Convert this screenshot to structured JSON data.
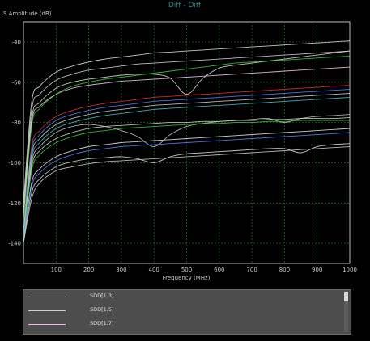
{
  "chart_data": {
    "type": "line",
    "title": "Diff - Diff",
    "xlabel": "Frequency (MHz)",
    "ylabel": "S Amplitude (dB)",
    "xlim": [
      0,
      1000
    ],
    "ylim": [
      -150,
      -30
    ],
    "xticks": [
      100,
      200,
      300,
      400,
      500,
      600,
      700,
      800,
      900,
      1000
    ],
    "yticks": [
      -40,
      -60,
      -80,
      -100,
      -120,
      -140
    ],
    "xtick_labels": [
      "100",
      "200",
      "300",
      "400",
      "500",
      "600",
      "700",
      "800",
      "900",
      "1000"
    ],
    "ytick_labels": [
      "-40",
      "-60",
      "-80",
      "-100",
      "-120",
      "-140"
    ],
    "grid": true,
    "x": [
      0,
      25,
      50,
      100,
      150,
      200,
      250,
      300,
      350,
      400,
      450,
      500,
      550,
      600,
      650,
      700,
      750,
      800,
      850,
      900,
      950,
      1000
    ],
    "series": [
      {
        "name": "SDD[1,3]",
        "color": "#dcdcdc",
        "values": [
          -120,
          -70,
          -62,
          -55,
          -52,
          -50,
          -48.5,
          -47.5,
          -46.5,
          -45.5,
          -45,
          -44.5,
          -44,
          -43.5,
          -43,
          -42.5,
          -42,
          -41.5,
          -41,
          -40.5,
          -40,
          -39.5
        ]
      },
      {
        "name": "SDD[1,5]",
        "color": "#d0d0d0",
        "values": [
          -125,
          -74,
          -66,
          -59,
          -56,
          -54,
          -53,
          -52,
          -51,
          -50.5,
          -50,
          -49.5,
          -49,
          -48.5,
          -48,
          -47.5,
          -47,
          -46.5,
          -46,
          -45.5,
          -45,
          -44.5
        ]
      },
      {
        "name": "SDD[1,7]",
        "color": "#e8c0e8",
        "values": [
          -128,
          -80,
          -72,
          -66,
          -63,
          -61.5,
          -60.5,
          -59.5,
          -59,
          -58.5,
          -58,
          -57.5,
          -57,
          -56.5,
          -56,
          -55.5,
          -55,
          -54.5,
          -54,
          -53.5,
          -53,
          -52.5
        ]
      },
      {
        "color": "#d8d8d8",
        "values": [
          -126,
          -78,
          -70,
          -63,
          -60,
          -58.5,
          -57.5,
          -56.5,
          -56,
          -56,
          -58,
          -66,
          -58,
          -53,
          -51.5,
          -50.5,
          -49.5,
          -48.5,
          -47.5,
          -46.5,
          -45.5,
          -44.5
        ]
      },
      {
        "color": "#38c838",
        "values": [
          -130,
          -82,
          -73,
          -66,
          -62,
          -60,
          -58.5,
          -57.5,
          -56.5,
          -55.5,
          -54.5,
          -53.5,
          -52.5,
          -51.5,
          -50.5,
          -50,
          -49.5,
          -49,
          -48.5,
          -48,
          -47.5,
          -47
        ]
      },
      {
        "color": "#e03030",
        "values": [
          -132,
          -92,
          -84,
          -77,
          -74,
          -72,
          -70.5,
          -69.5,
          -68.5,
          -67.5,
          -67,
          -66.5,
          -66,
          -65.5,
          -65,
          -64.5,
          -64,
          -63.5,
          -63,
          -62.5,
          -62,
          -61.5
        ]
      },
      {
        "color": "#5080ff",
        "values": [
          -133,
          -94,
          -86,
          -79,
          -76,
          -74,
          -72.5,
          -71.5,
          -70.5,
          -69.5,
          -69,
          -68.5,
          -68,
          -67.5,
          -67,
          -66.5,
          -66,
          -65.5,
          -65,
          -64.5,
          -64,
          -63.5
        ]
      },
      {
        "color": "#cccccc",
        "values": [
          -134,
          -96,
          -88,
          -81,
          -78,
          -76,
          -74.5,
          -73.5,
          -72.5,
          -71.5,
          -71,
          -70.5,
          -70,
          -69.5,
          -69,
          -68.5,
          -68,
          -67.5,
          -67,
          -66.5,
          -66,
          -65.5
        ]
      },
      {
        "color": "#40c0c0",
        "values": [
          -135,
          -98,
          -90,
          -83,
          -80,
          -78,
          -76.5,
          -75.5,
          -74.5,
          -73.5,
          -73,
          -72.5,
          -72,
          -71.5,
          -71,
          -70.5,
          -70,
          -69.5,
          -69,
          -68.5,
          -68,
          -67.5
        ]
      },
      {
        "color": "#c0c0c0",
        "values": [
          -136,
          -100,
          -92,
          -85,
          -82,
          -81,
          -82,
          -84,
          -87,
          -92,
          -86,
          -82,
          -80.5,
          -79.5,
          -79,
          -78.5,
          -78,
          -80,
          -78,
          -77,
          -76.5,
          -76
        ]
      },
      {
        "color": "#d0d0d0",
        "values": [
          -136,
          -102,
          -94,
          -88,
          -85,
          -83,
          -82,
          -81.5,
          -81,
          -80.5,
          -80,
          -80,
          -79.5,
          -79.5,
          -79,
          -79,
          -78.5,
          -78.5,
          -78,
          -78,
          -78,
          -77.5
        ]
      },
      {
        "color": "#38c838",
        "values": [
          -137,
          -104,
          -96,
          -90,
          -87,
          -85,
          -84,
          -83,
          -82.5,
          -82,
          -81.5,
          -81,
          -80.5,
          -80.5,
          -80,
          -80,
          -79.5,
          -79.5,
          -79,
          -79,
          -79,
          -79
        ]
      },
      {
        "color": "#e0e0e0",
        "values": [
          -138,
          -110,
          -103,
          -97,
          -94,
          -92,
          -91,
          -90,
          -89.5,
          -89,
          -88.5,
          -88,
          -87.5,
          -87,
          -86.5,
          -86,
          -85.5,
          -85,
          -84.5,
          -84,
          -83.5,
          -83
        ]
      },
      {
        "color": "#5080ff",
        "values": [
          -138,
          -112,
          -105,
          -99,
          -96,
          -94,
          -93,
          -92,
          -91.5,
          -91,
          -90.5,
          -90,
          -89.5,
          -89,
          -88.5,
          -88,
          -87.5,
          -87,
          -86.5,
          -86,
          -85.5,
          -85
        ]
      },
      {
        "color": "#d8d8d8",
        "values": [
          -139,
          -115,
          -108,
          -102,
          -99.5,
          -98,
          -97.5,
          -97,
          -98,
          -100,
          -97,
          -95.5,
          -95,
          -94.5,
          -94,
          -93.5,
          -93,
          -93,
          -95,
          -92,
          -91,
          -90.5
        ]
      },
      {
        "color": "#c8c8c8",
        "values": [
          -140,
          -118,
          -110,
          -104,
          -102,
          -100.5,
          -99.5,
          -99,
          -98.5,
          -98,
          -97.5,
          -97,
          -96.5,
          -96,
          -95.5,
          -95,
          -94.5,
          -94,
          -93.5,
          -93,
          -92.5,
          -92
        ]
      }
    ]
  }
}
